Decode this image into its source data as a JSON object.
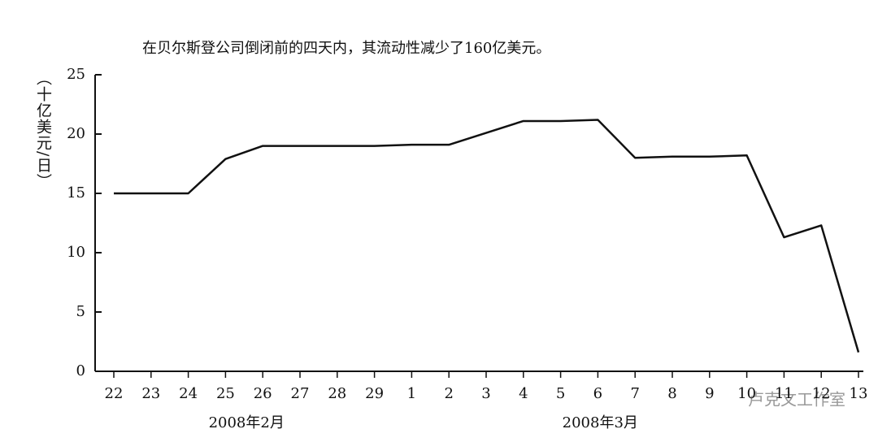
{
  "chart_data": {
    "type": "line",
    "title": "在贝尔斯登公司倒闭前的四天内，其流动性减少了160亿美元。",
    "y_label": "（十亿美元/日）",
    "watermark": "卢克文工作室",
    "categories": [
      "22",
      "23",
      "24",
      "25",
      "26",
      "27",
      "28",
      "29",
      "1",
      "2",
      "3",
      "4",
      "5",
      "6",
      "7",
      "8",
      "9",
      "10",
      "11",
      "12",
      "13"
    ],
    "month_labels": [
      "2008年2月",
      "2008年3月"
    ],
    "series": [
      {
        "color": "#111111",
        "values": [
          15,
          15,
          15,
          17.9,
          19,
          19,
          19,
          19,
          19.1,
          19.1,
          20.1,
          21.1,
          21.1,
          21.2,
          18,
          18.1,
          18.1,
          18.2,
          11.3,
          12.3,
          1.6
        ]
      }
    ],
    "ylim": [
      0,
      25
    ],
    "yticks": [
      0,
      5,
      10,
      15,
      20,
      25
    ]
  }
}
